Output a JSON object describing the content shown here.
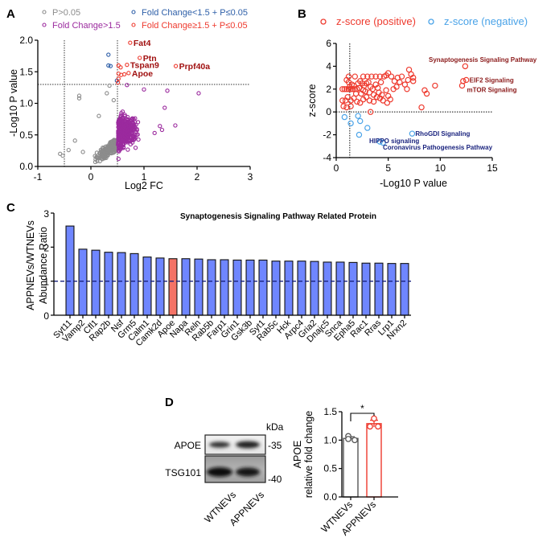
{
  "chart_data": [
    {
      "panel": "A",
      "type": "scatter",
      "title": "",
      "xlabel": "Log2 FC",
      "ylabel": "-Log10 P value",
      "xlim": [
        -1,
        3
      ],
      "ylim": [
        0,
        2.0
      ],
      "xticks": [
        "-1",
        "0",
        "1",
        "2",
        "3"
      ],
      "yticks": [
        "0.0",
        "0.5",
        "1.0",
        "1.5",
        "2.0"
      ],
      "reference_lines": {
        "vertical": [
          -0.5,
          0.5
        ],
        "horizontal": [
          1.3
        ]
      },
      "legend": [
        {
          "label": "P>0.05",
          "color": "#8c8c8c"
        },
        {
          "label": "Fold Change<1.5 + P≤0.05",
          "color": "#2e5fa8"
        },
        {
          "label": "Fold Change>1.5",
          "color": "#9b2a9e"
        },
        {
          "label": "Fold Change≥1.5 + P≤0.05",
          "color": "#ee3a2e"
        }
      ],
      "legend_position": "top",
      "series": [
        {
          "name": "Fold Change<1.5 + P≤0.05",
          "color": "#2e5fa8",
          "points": [
            [
              0.33,
              1.77
            ],
            [
              0.33,
              1.6
            ],
            [
              0.37,
              1.59
            ],
            [
              0.49,
              1.36
            ]
          ]
        },
        {
          "name": "Fold Change≥1.5 + P≤0.05",
          "color": "#ee3a2e",
          "points": [
            [
              0.74,
              1.96
            ],
            [
              0.92,
              1.72
            ],
            [
              0.52,
              1.6
            ],
            [
              0.56,
              1.57
            ],
            [
              0.68,
              1.61
            ],
            [
              0.52,
              1.47
            ],
            [
              0.57,
              1.45
            ],
            [
              0.63,
              1.46
            ],
            [
              0.71,
              1.48
            ],
            [
              1.6,
              1.59
            ],
            [
              0.51,
              1.33
            ],
            [
              0.52,
              1.39
            ]
          ]
        },
        {
          "name": "P>0.05",
          "color": "#8c8c8c",
          "generated_cloud": {
            "n": 260,
            "x_range": [
              -0.6,
              0.5
            ],
            "y_range": [
              0.0,
              1.3
            ]
          },
          "points": [
            [
              -0.22,
              1.12
            ],
            [
              -0.22,
              1.08
            ],
            [
              -0.58,
              0.2
            ],
            [
              -0.53,
              0.17
            ],
            [
              -0.42,
              0.26
            ],
            [
              -0.3,
              0.41
            ],
            [
              -0.15,
              0.23
            ],
            [
              0.15,
              0.8
            ],
            [
              0.3,
              1.16
            ],
            [
              0.35,
              1.28
            ],
            [
              0.43,
              1.05
            ]
          ]
        },
        {
          "name": "Fold Change>1.5",
          "color": "#9b2a9e",
          "generated_cloud": {
            "n": 420,
            "x_range": [
              0.5,
              1.6
            ],
            "y_range": [
              0.1,
              1.3
            ]
          },
          "points": [
            [
              2.03,
              1.16
            ],
            [
              1.44,
              1.2
            ],
            [
              1.39,
              0.93
            ],
            [
              1.59,
              0.65
            ],
            [
              1.3,
              0.64
            ],
            [
              1.34,
              0.58
            ],
            [
              1.2,
              0.53
            ],
            [
              0.52,
              0.12
            ],
            [
              0.68,
              1.29
            ],
            [
              1.0,
              1.22
            ]
          ]
        }
      ],
      "annotations": [
        {
          "text": "Fat4",
          "x": 0.74,
          "y": 1.96
        },
        {
          "text": "Ptn",
          "x": 0.92,
          "y": 1.72
        },
        {
          "text": "Tspan9",
          "x": 0.68,
          "y": 1.61
        },
        {
          "text": "Prpf40a",
          "x": 1.6,
          "y": 1.59
        },
        {
          "text": "Apoe",
          "x": 0.71,
          "y": 1.48
        }
      ]
    },
    {
      "panel": "B",
      "type": "scatter",
      "title": "",
      "xlabel": "-Log10 P value",
      "ylabel": "z-score",
      "xlim": [
        0,
        15
      ],
      "ylim": [
        -4,
        6
      ],
      "xticks": [
        "0",
        "5",
        "10",
        "15"
      ],
      "yticks": [
        "-4",
        "-2",
        "0",
        "2",
        "4",
        "6"
      ],
      "reference_lines": {
        "vertical": [
          1.3
        ],
        "horizontal": [
          0
        ]
      },
      "legend": [
        {
          "label": "z-score (positive)",
          "color": "#ee3a2e"
        },
        {
          "label": "z-score (negative)",
          "color": "#4aa3e8"
        }
      ],
      "legend_position": "top",
      "series": [
        {
          "name": "z-score (positive)",
          "color": "#ee3a2e",
          "points": [
            [
              0.6,
              2.0
            ],
            [
              0.8,
              2.0
            ],
            [
              1.0,
              2.0
            ],
            [
              1.2,
              2.0
            ],
            [
              1.4,
              2.0
            ],
            [
              1.6,
              2.0
            ],
            [
              1.8,
              2.0
            ],
            [
              2.0,
              2.0
            ],
            [
              1.0,
              2.8
            ],
            [
              1.2,
              2.6
            ],
            [
              1.5,
              2.4
            ],
            [
              1.3,
              2.2
            ],
            [
              1.7,
              2.3
            ],
            [
              2.1,
              2.5
            ],
            [
              2.3,
              2.7
            ],
            [
              2.5,
              2.5
            ],
            [
              2.7,
              2.3
            ],
            [
              2.9,
              2.5
            ],
            [
              3.1,
              2.6
            ],
            [
              2.2,
              2.1
            ],
            [
              2.6,
              1.9
            ],
            [
              3.3,
              2.2
            ],
            [
              3.5,
              2.0
            ],
            [
              3.8,
              2.4
            ],
            [
              4.0,
              2.1
            ],
            [
              4.3,
              2.6
            ],
            [
              4.6,
              3.1
            ],
            [
              4.8,
              3.2
            ],
            [
              5.0,
              3.4
            ],
            [
              5.3,
              3.1
            ],
            [
              5.6,
              2.7
            ],
            [
              5.9,
              3.0
            ],
            [
              6.1,
              2.6
            ],
            [
              6.3,
              3.1
            ],
            [
              6.6,
              2.4
            ],
            [
              7.0,
              3.7
            ],
            [
              7.2,
              3.3
            ],
            [
              7.4,
              2.7
            ],
            [
              1.2,
              3.1
            ],
            [
              1.8,
              3.1
            ],
            [
              2.6,
              3.1
            ],
            [
              3.0,
              3.1
            ],
            [
              3.4,
              3.1
            ],
            [
              3.8,
              3.1
            ],
            [
              4.2,
              3.1
            ],
            [
              5.5,
              2.0
            ],
            [
              5.8,
              2.2
            ],
            [
              6.8,
              2.0
            ],
            [
              0.6,
              1.0
            ],
            [
              0.9,
              1.0
            ],
            [
              1.1,
              1.3
            ],
            [
              1.4,
              1.0
            ],
            [
              1.7,
              1.2
            ],
            [
              2.0,
              0.9
            ],
            [
              2.3,
              0.8
            ],
            [
              2.6,
              1.1
            ],
            [
              2.9,
              1.3
            ],
            [
              3.2,
              1.0
            ],
            [
              3.6,
              0.9
            ],
            [
              3.9,
              1.3
            ],
            [
              4.2,
              1.2
            ],
            [
              4.5,
              1.0
            ],
            [
              4.9,
              0.8
            ],
            [
              5.2,
              1.1
            ],
            [
              0.7,
              0.5
            ],
            [
              1.0,
              0.4
            ],
            [
              1.4,
              0.5
            ],
            [
              1.9,
              1.6
            ],
            [
              2.4,
              1.6
            ],
            [
              2.8,
              1.8
            ],
            [
              3.2,
              1.7
            ],
            [
              3.6,
              1.5
            ],
            [
              4.1,
              1.7
            ],
            [
              4.4,
              1.5
            ],
            [
              4.8,
              1.9
            ],
            [
              5.0,
              1.4
            ],
            [
              3.3,
              0.0
            ],
            [
              8.2,
              0.4
            ],
            [
              8.5,
              1.9
            ],
            [
              8.7,
              1.6
            ],
            [
              9.5,
              2.3
            ],
            [
              12.1,
              2.3
            ],
            [
              12.2,
              2.7
            ],
            [
              12.5,
              2.8
            ],
            [
              12.4,
              4.0
            ],
            [
              6.9,
              2.8
            ],
            [
              7.4,
              3.0
            ]
          ]
        },
        {
          "name": "z-score (negative)",
          "color": "#4aa3e8",
          "points": [
            [
              0.8,
              -0.45
            ],
            [
              1.4,
              -1.0
            ],
            [
              2.1,
              -0.35
            ],
            [
              2.3,
              -0.8
            ],
            [
              2.2,
              -2.0
            ],
            [
              3.0,
              -1.4
            ],
            [
              4.2,
              -2.6
            ],
            [
              4.5,
              -2.7
            ],
            [
              7.3,
              -1.9
            ]
          ]
        }
      ],
      "annotations": [
        {
          "text": "Synaptogenesis Signaling Pathway",
          "x": 12.4,
          "y": 4.0,
          "color": "#8b1a1a"
        },
        {
          "text": "EIF2 Signaling",
          "x": 12.5,
          "y": 2.8,
          "color": "#8b1a1a"
        },
        {
          "text": "mTOR Signaling",
          "x": 12.1,
          "y": 2.3,
          "color": "#8b1a1a"
        },
        {
          "text": "RhoGDI Signaling",
          "x": 7.3,
          "y": -1.9,
          "color": "#1a237e"
        },
        {
          "text": "HIPPO signaling",
          "x": 4.2,
          "y": -2.6,
          "color": "#1a237e"
        },
        {
          "text": "Coronavirus Pathogenesis Pathway",
          "x": 4.5,
          "y": -2.7,
          "color": "#1a237e"
        }
      ]
    },
    {
      "panel": "C",
      "type": "bar",
      "title": "Synaptogenesis Signaling Pathway Related Protein",
      "xlabel": "",
      "ylabel": "APPNEVs/WTNEVs Abundance Ratio",
      "ylim": [
        0,
        3
      ],
      "yticks": [
        "0",
        "1",
        "2",
        "3"
      ],
      "reference_line": 1,
      "categories": [
        "Syt11",
        "Vamp2",
        "Cfl1",
        "Rap2b",
        "Nsf",
        "Grm5",
        "Calm1",
        "Camk2d",
        "Apoe",
        "Napa",
        "Reln",
        "Rab5b",
        "Farp1",
        "Grin1",
        "Gsk3b",
        "Syt1",
        "Rab5c",
        "Hck",
        "Arpc4",
        "Gria2",
        "Dnajc5",
        "Snca",
        "Epha5",
        "Rac1",
        "Rras",
        "Lrp1",
        "Nrxn2"
      ],
      "values": [
        2.62,
        1.94,
        1.91,
        1.85,
        1.84,
        1.81,
        1.71,
        1.68,
        1.66,
        1.66,
        1.65,
        1.63,
        1.63,
        1.62,
        1.62,
        1.62,
        1.59,
        1.59,
        1.59,
        1.58,
        1.56,
        1.56,
        1.55,
        1.53,
        1.53,
        1.52,
        1.52
      ],
      "highlight": "Apoe",
      "colors": {
        "default": "#6f86ff",
        "highlight": "#f47366"
      }
    },
    {
      "panel": "D",
      "type": "bar",
      "title": "",
      "xlabel": "",
      "ylabel": "APOE relative fold change",
      "ylim": [
        0,
        1.5
      ],
      "yticks": [
        "0.0",
        "0.5",
        "1.0",
        "1.5"
      ],
      "categories": [
        "WTNEVs",
        "APPNEVs"
      ],
      "values": [
        1.03,
        1.29
      ],
      "errors": [
        0.03,
        0.06
      ],
      "replicates": [
        [
          1.07,
          1.02,
          1.0
        ],
        [
          1.38,
          1.24,
          1.24
        ]
      ],
      "colors": [
        "#555555",
        "#ee3a2e"
      ],
      "significance": "*"
    }
  ],
  "panels": {
    "A": {
      "letter": "A"
    },
    "B": {
      "letter": "B"
    },
    "C": {
      "letter": "C"
    },
    "D": {
      "letter": "D"
    }
  },
  "western_blot": {
    "unit_label": "kDa",
    "rows": [
      {
        "protein": "APOE",
        "marker": "-35",
        "band_intensity": [
          0.55,
          0.8
        ]
      },
      {
        "protein": "TSG101",
        "marker": "-40",
        "band_intensity": [
          0.95,
          0.9
        ]
      }
    ],
    "lanes": [
      "WTNEVs",
      "APPNEVs"
    ]
  }
}
